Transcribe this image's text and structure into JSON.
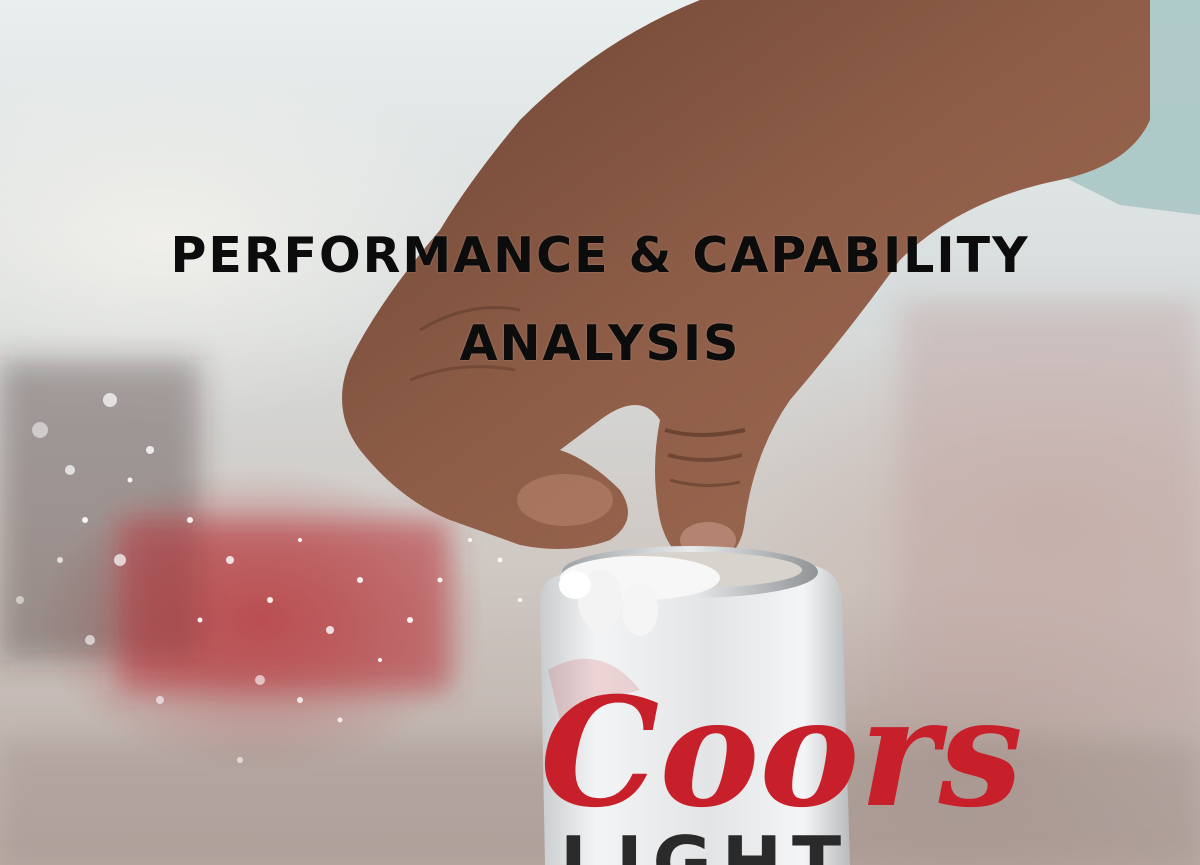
{
  "title": {
    "line1": "PERFORMANCE & CAPABILITY",
    "line2": "ANALYSIS"
  },
  "can": {
    "brand": "Coors",
    "sub": "LIGHT"
  },
  "colors": {
    "background_light": "#e9eeee",
    "blur_red": "#af282d",
    "skin": "#8a5a44",
    "can_silver": "#e4e6e7",
    "logo_red": "#c8202a",
    "title_text": "#0c0c0c"
  }
}
